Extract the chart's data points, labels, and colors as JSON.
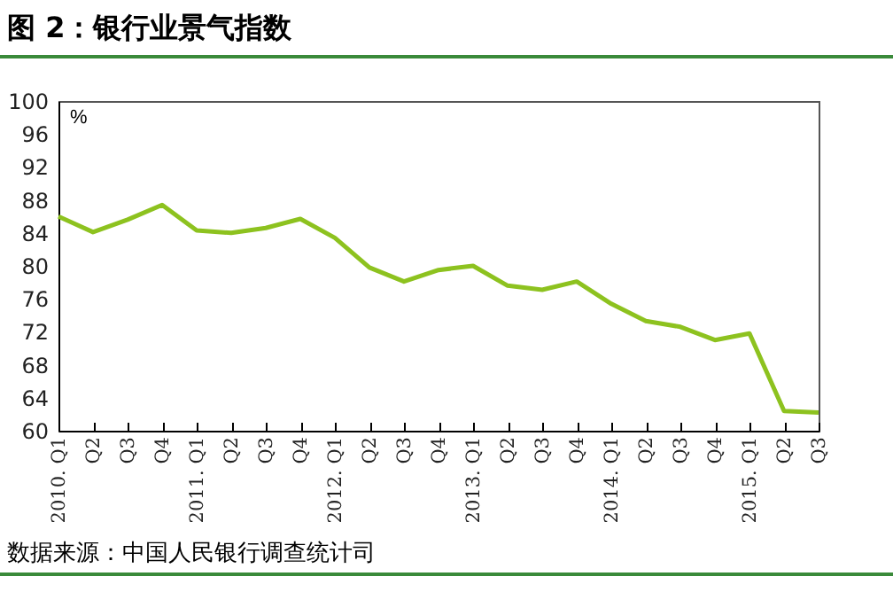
{
  "chart_data": {
    "type": "line",
    "title": "图 2：银行业景气指数",
    "ylabel": "%",
    "categories": [
      "2010. Q1",
      "Q2",
      "Q3",
      "Q4",
      "2011. Q1",
      "Q2",
      "Q3",
      "Q4",
      "2012. Q1",
      "Q2",
      "Q3",
      "Q4",
      "2013. Q1",
      "Q2",
      "Q3",
      "Q4",
      "2014. Q1",
      "Q2",
      "Q3",
      "Q4",
      "2015. Q1",
      "Q2",
      "Q3"
    ],
    "series": [
      {
        "color": "#8dc21f",
        "values": [
          86.0,
          84.1,
          85.6,
          87.4,
          84.3,
          84.0,
          84.6,
          85.7,
          83.4,
          79.8,
          78.1,
          79.5,
          80.0,
          77.6,
          77.1,
          78.1,
          75.4,
          73.3,
          72.6,
          71.0,
          71.8,
          62.4,
          62.2
        ]
      }
    ],
    "ylim": [
      60,
      100
    ],
    "yticks": [
      60,
      64,
      68,
      72,
      76,
      80,
      84,
      88,
      92,
      96,
      100
    ],
    "line_style": "solid",
    "annotations": [
      "数据来源：中国人民银行调查统计司"
    ]
  }
}
